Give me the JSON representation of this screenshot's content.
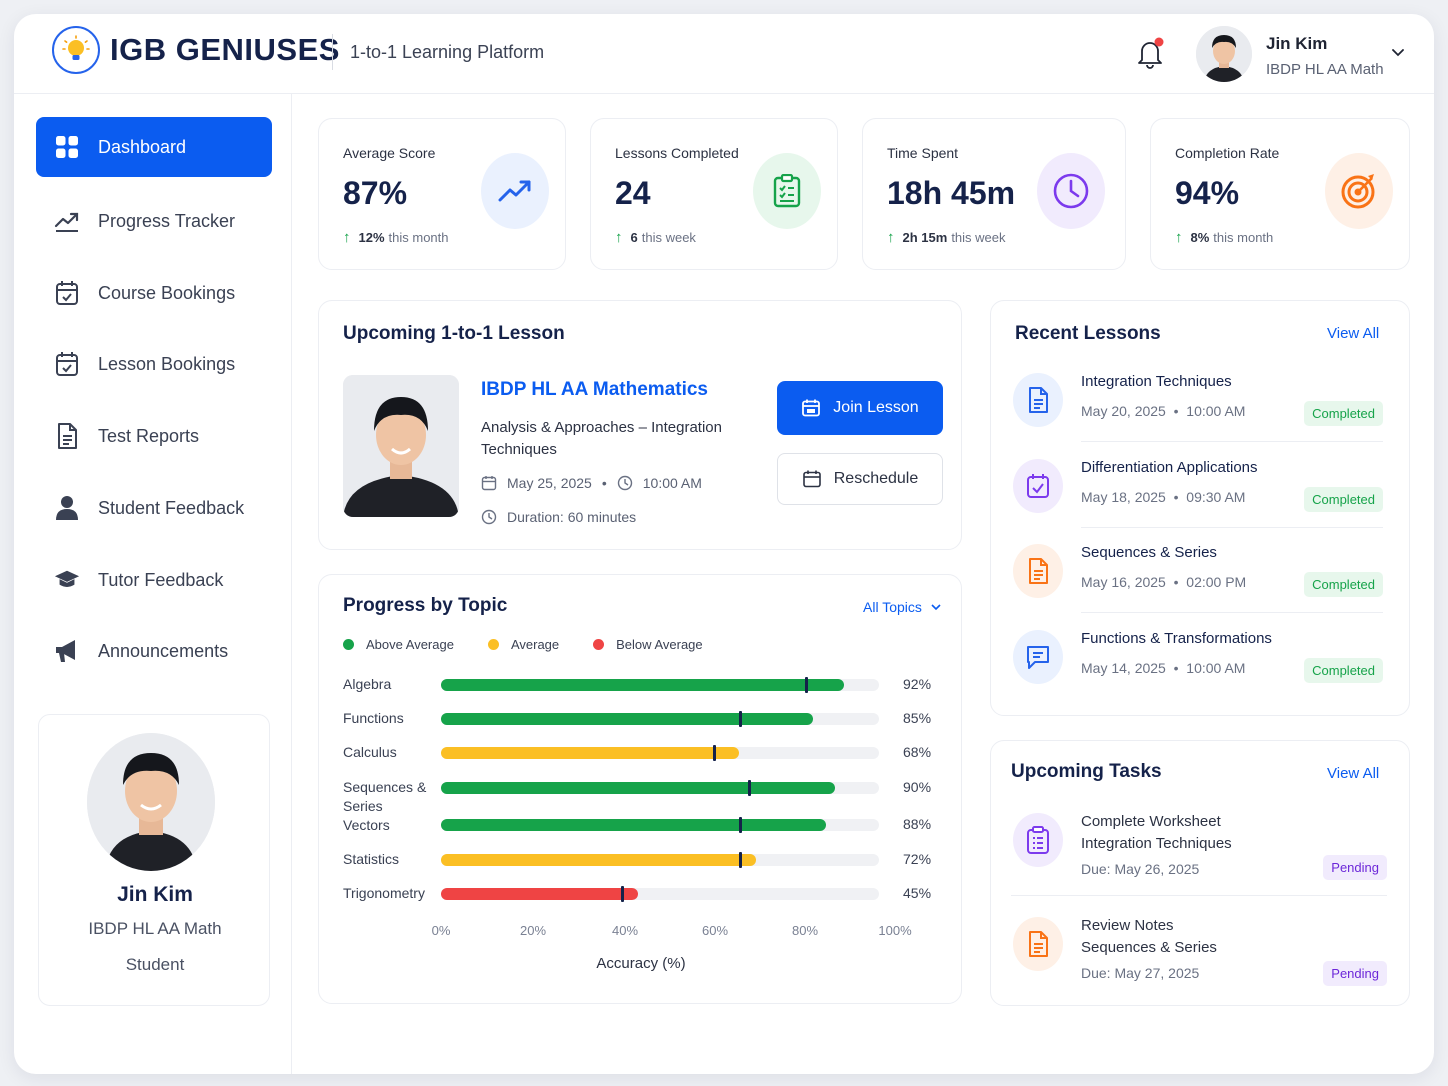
{
  "header": {
    "brand": "IGB GENIUSES",
    "tagline": "1-to-1 Learning Platform",
    "user_name": "Jin Kim",
    "user_sub": "IBDP HL AA Math"
  },
  "sidebar": {
    "items": [
      {
        "label": "Dashboard",
        "icon": "grid-icon"
      },
      {
        "label": "Progress Tracker",
        "icon": "trend-icon"
      },
      {
        "label": "Course Bookings",
        "icon": "calendar-check-icon"
      },
      {
        "label": "Lesson Bookings",
        "icon": "calendar-check-icon"
      },
      {
        "label": "Test Reports",
        "icon": "document-icon"
      },
      {
        "label": "Student Feedback",
        "icon": "user-icon"
      },
      {
        "label": "Tutor Feedback",
        "icon": "graduation-cap-icon"
      },
      {
        "label": "Announcements",
        "icon": "megaphone-icon"
      }
    ],
    "profile": {
      "name": "Jin Kim",
      "course": "IBDP HL AA Math",
      "role": "Student"
    }
  },
  "stats": [
    {
      "label": "Average Score",
      "value": "87%",
      "delta_value": "12%",
      "delta_text": "this month",
      "icon": "trend-up-icon",
      "color": "#2563eb"
    },
    {
      "label": "Lessons Completed",
      "value": "24",
      "delta_value": "6",
      "delta_text": "this week",
      "icon": "clipboard-icon",
      "color": "#16a34a"
    },
    {
      "label": "Time Spent",
      "value": "18h 45m",
      "delta_value": "2h 15m",
      "delta_text": "this week",
      "icon": "clock-icon",
      "color": "#7c3aed"
    },
    {
      "label": "Completion Rate",
      "value": "94%",
      "delta_value": "8%",
      "delta_text": "this month",
      "icon": "target-icon",
      "color": "#f97316"
    }
  ],
  "upcoming_lesson": {
    "title": "Upcoming 1-to-1 Lesson",
    "course": "IBDP HL AA Mathematics",
    "topic": "Analysis & Approaches – Integration Techniques",
    "date": "May 25, 2025",
    "time": "10:00 AM",
    "duration": "Duration: 60 minutes",
    "join_label": "Join Lesson",
    "reschedule_label": "Reschedule"
  },
  "progress": {
    "title": "Progress by Topic",
    "filter": "All Topics",
    "legend": [
      {
        "label": "Above Average",
        "color": "#16a34a"
      },
      {
        "label": "Average",
        "color": "#fbbf24"
      },
      {
        "label": "Below Average",
        "color": "#ef4444"
      }
    ],
    "x_label": "Accuracy (%)",
    "ticks": [
      "0%",
      "20%",
      "40%",
      "60%",
      "80%",
      "100%"
    ],
    "chart_data": {
      "type": "bar",
      "categories": [
        "Algebra",
        "Functions",
        "Calculus",
        "Sequences & Series",
        "Vectors",
        "Statistics",
        "Trigonometry"
      ],
      "values": [
        92,
        85,
        68,
        90,
        88,
        72,
        45
      ],
      "markers": [
        83,
        68,
        62,
        70,
        68,
        68,
        41
      ],
      "levels": [
        "above",
        "above",
        "average",
        "above",
        "above",
        "average",
        "below"
      ],
      "pct_labels": [
        "92%",
        "85%",
        "68%",
        "90%",
        "88%",
        "72%",
        "45%"
      ],
      "xlim": [
        0,
        100
      ]
    }
  },
  "recent_lessons": {
    "title": "Recent Lessons",
    "view_all": "View All",
    "items": [
      {
        "title": "Integration Techniques",
        "date": "May 20, 2025  •  10:00 AM",
        "status": "Completed",
        "icon": "document-icon",
        "color": "#2563eb",
        "bg": "#eaf1fe"
      },
      {
        "title": "Differentiation Applications",
        "date": "May 18, 2025  •  09:30 AM",
        "status": "Completed",
        "icon": "calendar-check-icon",
        "color": "#7c3aed",
        "bg": "#f1ebfd"
      },
      {
        "title": "Sequences & Series",
        "date": "May 16, 2025  •  02:00 PM",
        "status": "Completed",
        "icon": "document-icon",
        "color": "#f97316",
        "bg": "#fef0e6"
      },
      {
        "title": "Functions & Transformations",
        "date": "May 14, 2025  •  10:00 AM",
        "status": "Completed",
        "icon": "chat-icon",
        "color": "#2563eb",
        "bg": "#eaf1fe"
      }
    ]
  },
  "upcoming_tasks": {
    "title": "Upcoming Tasks",
    "view_all": "View All",
    "items": [
      {
        "line1": "Complete Worksheet",
        "line2": "Integration Techniques",
        "due": "Due: May 26, 2025",
        "status": "Pending",
        "icon": "clipboard-icon",
        "color": "#7c3aed",
        "bg": "#f1ebfd"
      },
      {
        "line1": "Review Notes",
        "line2": "Sequences & Series",
        "due": "Due: May 27, 2025",
        "status": "Pending",
        "icon": "document-icon",
        "color": "#f97316",
        "bg": "#fef0e6"
      }
    ]
  }
}
